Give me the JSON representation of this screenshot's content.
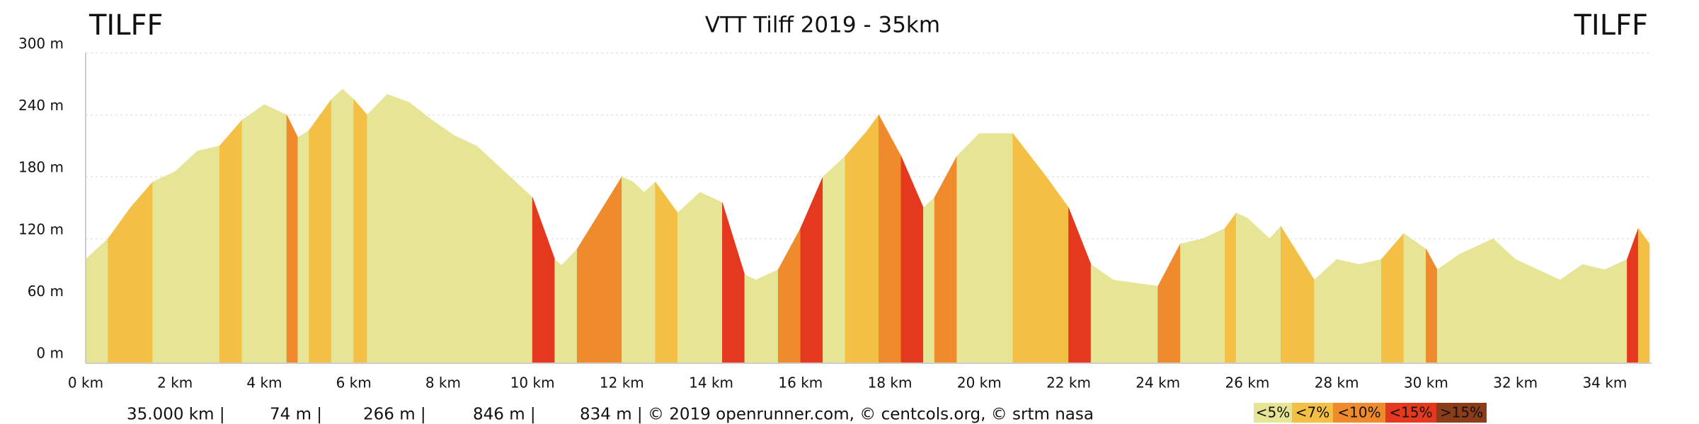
{
  "chart_data": {
    "type": "elevation-profile",
    "title": "VTT Tilff 2019 - 35km",
    "start_label": "TILFF",
    "end_label": "TILFF",
    "x": [
      0,
      0.5,
      1,
      1.5,
      2,
      2.5,
      3,
      3.5,
      4,
      4.5,
      4.75,
      5,
      5.5,
      5.75,
      6,
      6.3,
      6.75,
      7.25,
      7.75,
      8.25,
      8.75,
      9.5,
      10,
      10.5,
      10.65,
      11,
      11.5,
      12,
      12.25,
      12.5,
      12.75,
      13,
      13.25,
      13.75,
      14.25,
      14.75,
      15,
      15.5,
      16,
      16.5,
      17,
      17.5,
      17.75,
      18.25,
      18.75,
      19,
      19.5,
      20,
      20.75,
      21.5,
      22,
      22.5,
      23,
      24,
      24.5,
      25,
      25.5,
      25.75,
      26,
      26.5,
      26.75,
      27.5,
      28,
      28.5,
      29,
      29.5,
      30,
      30.25,
      30.75,
      31.5,
      32,
      32.5,
      33,
      33.5,
      34,
      34.5,
      34.75,
      35
    ],
    "series": [
      {
        "name": "Elevation",
        "values": [
          100,
          120,
          150,
          175,
          185,
          205,
          210,
          235,
          250,
          240,
          218,
          225,
          255,
          265,
          255,
          240,
          260,
          252,
          235,
          220,
          210,
          180,
          160,
          100,
          94,
          110,
          145,
          180,
          175,
          165,
          175,
          160,
          145,
          165,
          155,
          85,
          80,
          90,
          130,
          180,
          200,
          225,
          240,
          200,
          150,
          160,
          200,
          222,
          222,
          180,
          150,
          95,
          80,
          74,
          115,
          120,
          130,
          145,
          140,
          120,
          132,
          80,
          100,
          95,
          100,
          125,
          110,
          90,
          105,
          120,
          100,
          90,
          80,
          95,
          90,
          100,
          130,
          115
        ]
      }
    ],
    "grade_classes": [
      {
        "label": "<5%",
        "max": 5,
        "color": "#e6e596"
      },
      {
        "label": "<7%",
        "max": 7,
        "color": "#f3c045"
      },
      {
        "label": "<10%",
        "max": 10,
        "color": "#f08b2d"
      },
      {
        "label": "<15%",
        "max": 15,
        "color": "#e4391f"
      },
      {
        "label": ">15%",
        "color": "#8b3d1b"
      }
    ],
    "xlim": [
      0,
      35
    ],
    "xticks": [
      {
        "value": 0,
        "label": "0 km"
      },
      {
        "value": 2,
        "label": "2 km"
      },
      {
        "value": 4,
        "label": "4 km"
      },
      {
        "value": 6,
        "label": "6 km"
      },
      {
        "value": 8,
        "label": "8 km"
      },
      {
        "value": 10,
        "label": "10 km"
      },
      {
        "value": 12,
        "label": "12 km"
      },
      {
        "value": 14,
        "label": "14 km"
      },
      {
        "value": 16,
        "label": "16 km"
      },
      {
        "value": 18,
        "label": "18 km"
      },
      {
        "value": 20,
        "label": "20 km"
      },
      {
        "value": 22,
        "label": "22 km"
      },
      {
        "value": 24,
        "label": "24 km"
      },
      {
        "value": 26,
        "label": "26 km"
      },
      {
        "value": 28,
        "label": "28 km"
      },
      {
        "value": 30,
        "label": "30 km"
      },
      {
        "value": 32,
        "label": "32 km"
      },
      {
        "value": 34,
        "label": "34 km"
      }
    ],
    "ylim": [
      0,
      300
    ],
    "yticks": [
      {
        "value": 0,
        "label": "0 m"
      },
      {
        "value": 60,
        "label": "60 m"
      },
      {
        "value": 120,
        "label": "120 m"
      },
      {
        "value": 180,
        "label": "180 m"
      },
      {
        "value": 240,
        "label": "240 m"
      },
      {
        "value": 300,
        "label": "300 m"
      }
    ],
    "grid": true,
    "stats": [
      "35.000 km |",
      "74 m |",
      "266 m |",
      "846 m |",
      "834 m | © 2019 openrunner.com, © centcols.org, © srtm nasa"
    ]
  }
}
